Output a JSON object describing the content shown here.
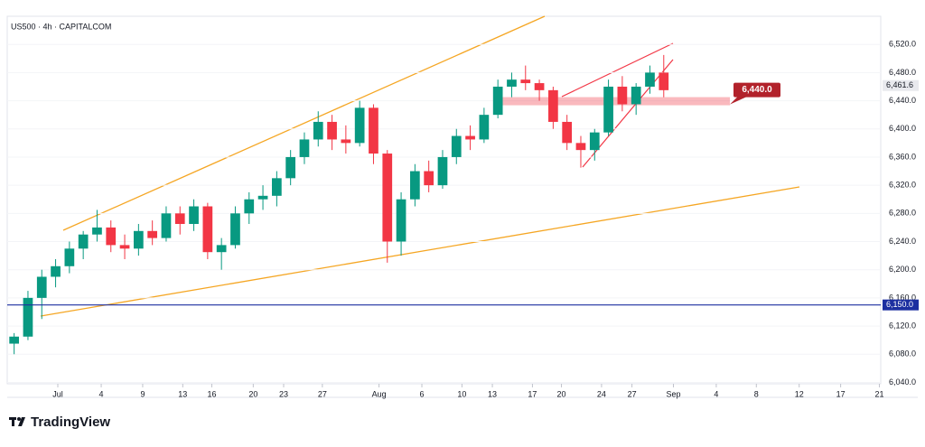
{
  "chart_data": {
    "type": "candlestick",
    "title": "US500 · 4h · CAPITALCOM",
    "ylim": [
      6038,
      6560
    ],
    "yticks": [
      {
        "value": 6040,
        "label": "6,040.0"
      },
      {
        "value": 6080,
        "label": "6,080.0"
      },
      {
        "value": 6120,
        "label": "6,120.0"
      },
      {
        "value": 6160,
        "label": "6,160.0"
      },
      {
        "value": 6200,
        "label": "6,200.0"
      },
      {
        "value": 6240,
        "label": "6,240.0"
      },
      {
        "value": 6280,
        "label": "6,280.0"
      },
      {
        "value": 6320,
        "label": "6,320.0"
      },
      {
        "value": 6360,
        "label": "6,360.0"
      },
      {
        "value": 6400,
        "label": "6,400.0"
      },
      {
        "value": 6440,
        "label": "6,440.0"
      },
      {
        "value": 6480,
        "label": "6,480.0"
      },
      {
        "value": 6520,
        "label": "6,520.0"
      }
    ],
    "xlim": [
      0,
      63.2
    ],
    "xticks": [
      {
        "value": 3.66,
        "label": "Jul"
      },
      {
        "value": 6.8,
        "label": "4"
      },
      {
        "value": 9.8,
        "label": "9"
      },
      {
        "value": 12.7,
        "label": "13"
      },
      {
        "value": 14.8,
        "label": "16"
      },
      {
        "value": 17.8,
        "label": "20"
      },
      {
        "value": 20,
        "label": "23"
      },
      {
        "value": 22.8,
        "label": "27"
      },
      {
        "value": 26.9,
        "label": "Aug"
      },
      {
        "value": 30,
        "label": "6"
      },
      {
        "value": 32.9,
        "label": "10"
      },
      {
        "value": 35.1,
        "label": "13"
      },
      {
        "value": 38,
        "label": "17"
      },
      {
        "value": 40.1,
        "label": "20"
      },
      {
        "value": 43,
        "label": "24"
      },
      {
        "value": 45.2,
        "label": "27"
      },
      {
        "value": 48.2,
        "label": "Sep"
      },
      {
        "value": 51.3,
        "label": "4"
      },
      {
        "value": 54.2,
        "label": "8"
      },
      {
        "value": 57.3,
        "label": "12"
      },
      {
        "value": 60.3,
        "label": "17"
      },
      {
        "value": 63.1,
        "label": "21"
      }
    ],
    "up_color": "#089981",
    "down_color": "#f23645",
    "ohlc": [
      [
        6095,
        6110,
        6080,
        6105
      ],
      [
        6105,
        6170,
        6100,
        6160
      ],
      [
        6160,
        6200,
        6130,
        6190
      ],
      [
        6190,
        6215,
        6175,
        6205
      ],
      [
        6205,
        6240,
        6195,
        6230
      ],
      [
        6230,
        6255,
        6215,
        6250
      ],
      [
        6250,
        6285,
        6240,
        6260
      ],
      [
        6260,
        6270,
        6225,
        6235
      ],
      [
        6235,
        6250,
        6215,
        6230
      ],
      [
        6230,
        6265,
        6220,
        6255
      ],
      [
        6255,
        6270,
        6235,
        6245
      ],
      [
        6245,
        6290,
        6240,
        6280
      ],
      [
        6280,
        6290,
        6250,
        6265
      ],
      [
        6265,
        6300,
        6255,
        6290
      ],
      [
        6290,
        6295,
        6215,
        6225
      ],
      [
        6225,
        6245,
        6200,
        6235
      ],
      [
        6235,
        6290,
        6230,
        6280
      ],
      [
        6280,
        6310,
        6265,
        6300
      ],
      [
        6300,
        6320,
        6285,
        6305
      ],
      [
        6305,
        6340,
        6290,
        6330
      ],
      [
        6330,
        6370,
        6320,
        6360
      ],
      [
        6360,
        6395,
        6350,
        6385
      ],
      [
        6385,
        6425,
        6375,
        6410
      ],
      [
        6410,
        6420,
        6370,
        6385
      ],
      [
        6385,
        6405,
        6365,
        6380
      ],
      [
        6380,
        6440,
        6375,
        6430
      ],
      [
        6430,
        6435,
        6350,
        6365
      ],
      [
        6365,
        6370,
        6210,
        6240
      ],
      [
        6240,
        6310,
        6220,
        6300
      ],
      [
        6300,
        6350,
        6290,
        6340
      ],
      [
        6340,
        6355,
        6310,
        6320
      ],
      [
        6320,
        6370,
        6315,
        6360
      ],
      [
        6360,
        6400,
        6350,
        6390
      ],
      [
        6390,
        6405,
        6370,
        6385
      ],
      [
        6385,
        6430,
        6380,
        6420
      ],
      [
        6420,
        6470,
        6415,
        6460
      ],
      [
        6460,
        6480,
        6445,
        6470
      ],
      [
        6470,
        6490,
        6455,
        6465
      ],
      [
        6465,
        6470,
        6440,
        6455
      ],
      [
        6455,
        6460,
        6400,
        6410
      ],
      [
        6410,
        6420,
        6370,
        6380
      ],
      [
        6380,
        6390,
        6345,
        6370
      ],
      [
        6370,
        6400,
        6355,
        6395
      ],
      [
        6395,
        6470,
        6390,
        6460
      ],
      [
        6460,
        6475,
        6425,
        6435
      ],
      [
        6435,
        6465,
        6420,
        6460
      ],
      [
        6460,
        6490,
        6450,
        6480
      ],
      [
        6480,
        6505,
        6445,
        6455
      ]
    ],
    "level_line": {
      "value": 6150,
      "label": "6,150.0",
      "color": "#1c2fa0"
    },
    "zone_label": {
      "value": 6440,
      "label": "6,440.0",
      "color": "#b2222b"
    },
    "last_price": {
      "value": 6461.6,
      "label": "6,461.6"
    },
    "brand": "TradingView"
  }
}
